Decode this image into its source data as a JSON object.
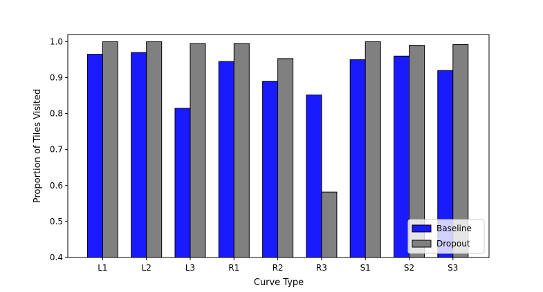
{
  "chart_data": {
    "type": "bar",
    "title": "",
    "xlabel": "Curve Type",
    "ylabel": "Proportion of Tiles Visited",
    "categories": [
      "L1",
      "L2",
      "L3",
      "R1",
      "R2",
      "R3",
      "S1",
      "S2",
      "S3"
    ],
    "series": [
      {
        "name": "Baseline",
        "color": "#1a1aff",
        "values": [
          0.965,
          0.97,
          0.815,
          0.945,
          0.89,
          0.852,
          0.95,
          0.96,
          0.92
        ]
      },
      {
        "name": "Dropout",
        "color": "#808080",
        "values": [
          1.0,
          1.0,
          0.995,
          0.995,
          0.953,
          0.582,
          1.0,
          0.99,
          0.992
        ]
      }
    ],
    "ylim": [
      0.4,
      1.02
    ],
    "yticks": [
      "0.4",
      "0.5",
      "0.6",
      "0.7",
      "0.8",
      "0.9",
      "1.0"
    ],
    "grid": false,
    "legend_position": "bottom-right"
  }
}
